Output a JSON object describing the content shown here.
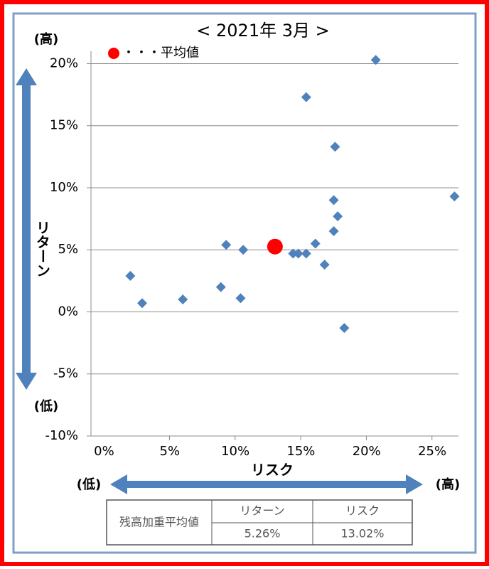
{
  "chart_data": {
    "type": "scatter",
    "title": "< 2021年 3月 >",
    "x_label": "リスク",
    "y_label": "リターン",
    "high_label_y": "(高)",
    "low_label_y": "(低)",
    "low_label_x": "(低)",
    "high_label_x": "(高)",
    "color": "#4f81bd",
    "x": [
      2.0,
      2.9,
      6.0,
      8.9,
      9.3,
      10.4,
      10.6,
      14.4,
      14.8,
      15.4,
      15.4,
      16.1,
      16.8,
      17.5,
      17.5,
      17.6,
      17.8,
      18.3,
      20.7,
      26.7
    ],
    "values": [
      2.9,
      0.7,
      1.0,
      2.0,
      5.4,
      1.1,
      5.0,
      4.7,
      4.7,
      4.7,
      17.3,
      5.5,
      3.8,
      6.5,
      9.0,
      13.3,
      7.7,
      -1.3,
      20.3,
      9.3
    ],
    "average": {
      "name": "・・・平均値",
      "color": "#ff0000",
      "x": 13.02,
      "y": 5.26
    },
    "xlim": [
      -1,
      27
    ],
    "ylim": [
      -10,
      21
    ],
    "xticks": [
      {
        "value": 0,
        "label": "0%"
      },
      {
        "value": 5,
        "label": "5%"
      },
      {
        "value": 10,
        "label": "10%"
      },
      {
        "value": 15,
        "label": "15%"
      },
      {
        "value": 20,
        "label": "20%"
      },
      {
        "value": 25,
        "label": "25%"
      }
    ],
    "yticks": [
      {
        "value": -10,
        "label": "-10%"
      },
      {
        "value": -5,
        "label": "-5%"
      },
      {
        "value": 0,
        "label": "0%"
      },
      {
        "value": 5,
        "label": "5%"
      },
      {
        "value": 10,
        "label": "10%"
      },
      {
        "value": 15,
        "label": "15%"
      },
      {
        "value": 20,
        "label": "20%"
      }
    ],
    "grid": true
  },
  "table": {
    "headers": [
      "残高加重平均値",
      "リターン",
      "リスク"
    ],
    "values": [
      "5.26%",
      "13.02%"
    ]
  }
}
